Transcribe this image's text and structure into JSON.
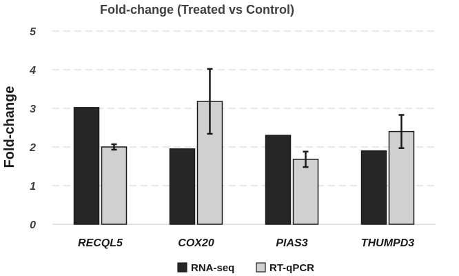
{
  "chart_data": {
    "type": "bar",
    "title": "Fold-change (Treated vs Control)",
    "xlabel": "",
    "ylabel": "Fold-change",
    "ylim": [
      0,
      5
    ],
    "yticks": [
      "0",
      "1",
      "2",
      "3",
      "4",
      "5"
    ],
    "grid": true,
    "legend_position": "bottom",
    "categories": [
      "RECQL5",
      "COX20",
      "PIAS3",
      "THUMPD3"
    ],
    "series": [
      {
        "name": "RNA-seq",
        "color": "#262626",
        "values": [
          3.02,
          1.95,
          2.3,
          1.9
        ],
        "errors": null
      },
      {
        "name": "RT-qPCR",
        "color": "#d0d0d0",
        "values": [
          2.0,
          3.18,
          1.68,
          2.4
        ],
        "errors": [
          0.07,
          0.84,
          0.2,
          0.43
        ]
      }
    ]
  }
}
